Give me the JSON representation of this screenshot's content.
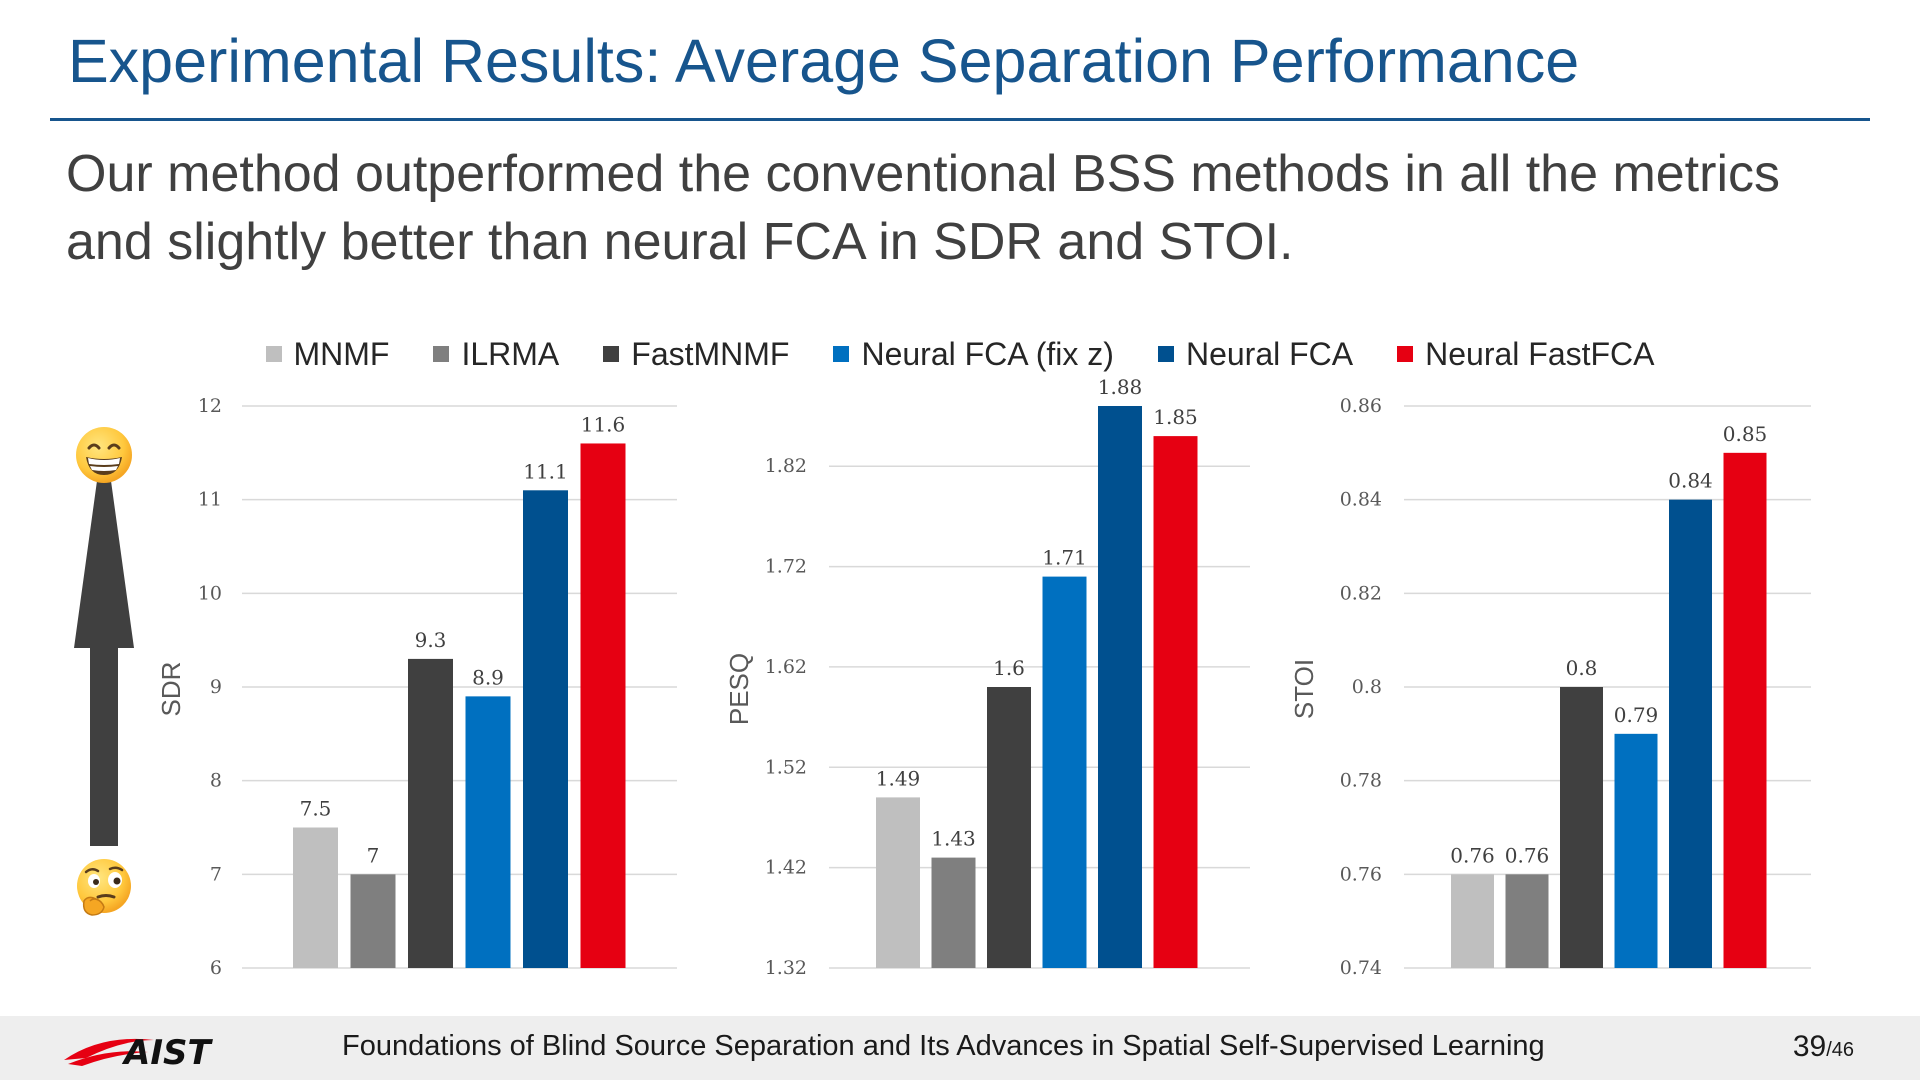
{
  "slide": {
    "title": "Experimental Results: Average Separation Performance",
    "subtitle_lines": [
      "Our method outperformed the conventional BSS methods in all the metrics",
      "and slightly better than neural FCA in SDR and STOI."
    ]
  },
  "legend": [
    {
      "label": "MNMF",
      "color": "#bfbfbf"
    },
    {
      "label": "ILRMA",
      "color": "#7f7f7f"
    },
    {
      "label": "FastMNMF",
      "color": "#404040"
    },
    {
      "label": "Neural FCA (fix z)",
      "color": "#0070c0"
    },
    {
      "label": "Neural FCA",
      "color": "#00508f"
    },
    {
      "label": "Neural FastFCA",
      "color": "#e60012"
    }
  ],
  "chart_data": [
    {
      "type": "bar",
      "categories": [
        "MNMF",
        "ILRMA",
        "FastMNMF",
        "Neural FCA (fix z)",
        "Neural FCA",
        "Neural FastFCA"
      ],
      "values": [
        7.5,
        7,
        9.3,
        8.9,
        11.1,
        11.6
      ],
      "value_labels": [
        "7.5",
        "7",
        "9.3",
        "8.9",
        "11.1",
        "11.6"
      ],
      "ylabel": "SDR",
      "ylim": [
        6,
        12
      ],
      "ticks": [
        6,
        7,
        8,
        9,
        10,
        11,
        12
      ],
      "tick_labels": [
        "6",
        "7",
        "8",
        "9",
        "10",
        "11",
        "12"
      ],
      "grid": true
    },
    {
      "type": "bar",
      "categories": [
        "MNMF",
        "ILRMA",
        "FastMNMF",
        "Neural FCA (fix z)",
        "Neural FCA",
        "Neural FastFCA"
      ],
      "values": [
        1.49,
        1.43,
        1.6,
        1.71,
        1.88,
        1.85
      ],
      "value_labels": [
        "1.49",
        "1.43",
        "1.6",
        "1.71",
        "1.88",
        "1.85"
      ],
      "ylabel": "PESQ",
      "ylim": [
        1.32,
        1.88
      ],
      "ticks": [
        1.32,
        1.42,
        1.52,
        1.62,
        1.72,
        1.82
      ],
      "tick_labels": [
        "1.32",
        "1.42",
        "1.52",
        "1.62",
        "1.72",
        "1.82"
      ],
      "grid": true
    },
    {
      "type": "bar",
      "categories": [
        "MNMF",
        "ILRMA",
        "FastMNMF",
        "Neural FCA (fix z)",
        "Neural FCA",
        "Neural FastFCA"
      ],
      "values": [
        0.76,
        0.76,
        0.8,
        0.79,
        0.84,
        0.85
      ],
      "value_labels": [
        "0.76",
        "0.76",
        "0.8",
        "0.79",
        "0.84",
        "0.85"
      ],
      "ylabel": "STOI",
      "ylim": [
        0.74,
        0.86
      ],
      "ticks": [
        0.74,
        0.76,
        0.78,
        0.8,
        0.82,
        0.84,
        0.86
      ],
      "tick_labels": [
        "0.74",
        "0.76",
        "0.78",
        "0.8",
        "0.82",
        "0.84",
        "0.86"
      ],
      "grid": true
    }
  ],
  "decorations": {
    "top_emoji": "grinning-face-icon",
    "bottom_emoji": "thinking-face-icon",
    "arrow": "up-arrow-icon"
  },
  "footer": {
    "logo_text": "AIST",
    "text": "Foundations of Blind Source Separation and Its Advances in Spatial Self-Supervised Learning",
    "page_current": "39",
    "page_separator": "/",
    "page_total": "46"
  }
}
